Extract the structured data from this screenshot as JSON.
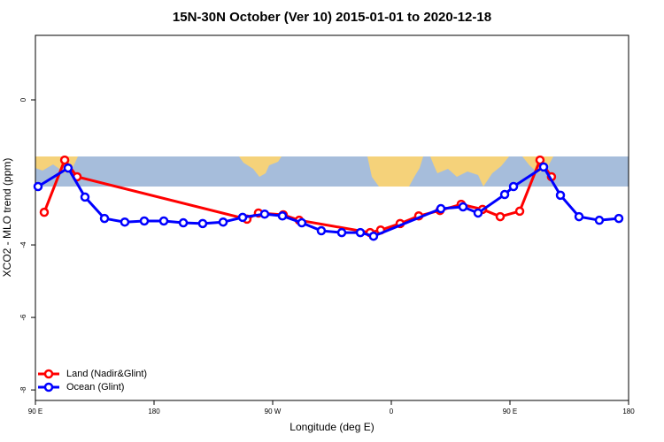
{
  "chart_data": {
    "type": "line",
    "title": "15N-30N October (Ver 10)   2015-01-01 to 2020-12-18",
    "x_label": "Longitude (deg E)",
    "y_label": "XCO2 - MLO trend (ppm)",
    "xlim": [
      90,
      540
    ],
    "ylim": [
      -8.29,
      1.78
    ],
    "xticks": [
      {
        "value": 90,
        "label": "90 E"
      },
      {
        "value": 180,
        "label": "180"
      },
      {
        "value": 270,
        "label": "90 W"
      },
      {
        "value": 360,
        "label": "0"
      },
      {
        "value": 450,
        "label": "90 E"
      },
      {
        "value": 540,
        "label": "180"
      }
    ],
    "yticks": [
      0,
      -4,
      -6,
      -8
    ],
    "legend": "bottom-left",
    "series": [
      {
        "name": "Land (Nadir&Glint)",
        "color": "#ff0000",
        "x": [
          96.7,
          112.2,
          121.6,
          250.5,
          259.2,
          278.0,
          290.1,
          343.9,
          351.9,
          366.7,
          380.8,
          396.9,
          413.0,
          429.2,
          442.6,
          457.4,
          472.8,
          481.5
        ],
        "values": [
          -3.1,
          -1.66,
          -2.12,
          -3.29,
          -3.12,
          -3.17,
          -3.32,
          -3.66,
          -3.59,
          -3.41,
          -3.2,
          -3.05,
          -2.88,
          -3.02,
          -3.22,
          -3.07,
          -1.66,
          -2.12
        ]
      },
      {
        "name": "Ocean (Glint)",
        "color": "#0000ff",
        "x": [
          92.0,
          114.8,
          127.6,
          142.4,
          157.8,
          172.6,
          187.4,
          202.2,
          216.9,
          232.4,
          247.2,
          263.9,
          277.4,
          292.1,
          306.9,
          322.4,
          336.5,
          346.5,
          397.6,
          414.4,
          425.8,
          446.0,
          452.7,
          475.5,
          488.3,
          502.4,
          517.8,
          532.6
        ],
        "values": [
          -2.39,
          -1.88,
          -2.68,
          -3.27,
          -3.37,
          -3.34,
          -3.34,
          -3.39,
          -3.41,
          -3.37,
          -3.24,
          -3.15,
          -3.2,
          -3.39,
          -3.61,
          -3.66,
          -3.66,
          -3.76,
          -3.0,
          -2.95,
          -3.12,
          -2.61,
          -2.39,
          -1.85,
          -2.63,
          -3.22,
          -3.32,
          -3.27
        ]
      }
    ]
  }
}
